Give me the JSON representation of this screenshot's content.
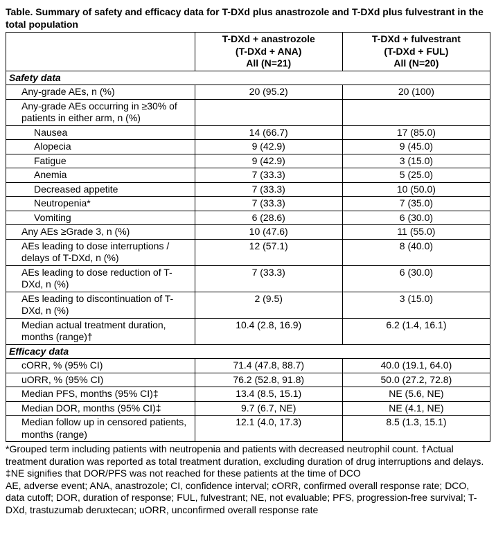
{
  "title": "Table. Summary of safety and efficacy data for T-DXd plus anastrozole and T-DXd plus fulvestrant in the total population",
  "columns": {
    "c1": {
      "line1": "T-DXd + anastrozole",
      "line2": "(T-DXd + ANA)",
      "line3": "All (N=21)"
    },
    "c2": {
      "line1": "T-DXd + fulvestrant",
      "line2": "(T-DXd + FUL)",
      "line3": "All (N=20)"
    }
  },
  "sections": {
    "safety": "Safety data",
    "efficacy": "Efficacy data"
  },
  "rows": {
    "r1": {
      "label": "Any-grade AEs, n (%)",
      "indent": 1,
      "v1": "20 (95.2)",
      "v2": "20 (100)"
    },
    "r2": {
      "label": "Any-grade AEs occurring in ≥30% of patients in either arm, n (%)",
      "indent": 1,
      "v1": "",
      "v2": ""
    },
    "r3": {
      "label": "Nausea",
      "indent": 2,
      "v1": "14 (66.7)",
      "v2": "17 (85.0)"
    },
    "r4": {
      "label": "Alopecia",
      "indent": 2,
      "v1": "9 (42.9)",
      "v2": "9 (45.0)"
    },
    "r5": {
      "label": "Fatigue",
      "indent": 2,
      "v1": "9 (42.9)",
      "v2": "3 (15.0)"
    },
    "r6": {
      "label": "Anemia",
      "indent": 2,
      "v1": "7 (33.3)",
      "v2": "5 (25.0)"
    },
    "r7": {
      "label": "Decreased appetite",
      "indent": 2,
      "v1": "7 (33.3)",
      "v2": "10 (50.0)"
    },
    "r8": {
      "label": "Neutropenia*",
      "indent": 2,
      "v1": "7 (33.3)",
      "v2": "7 (35.0)"
    },
    "r9": {
      "label": "Vomiting",
      "indent": 2,
      "v1": "6 (28.6)",
      "v2": "6 (30.0)"
    },
    "r10": {
      "label": "Any AEs ≥Grade 3, n (%)",
      "indent": 1,
      "v1": "10 (47.6)",
      "v2": "11 (55.0)"
    },
    "r11": {
      "label": "AEs leading to dose interruptions / delays of T-DXd, n (%)",
      "indent": 1,
      "v1": "12 (57.1)",
      "v2": "8 (40.0)"
    },
    "r12": {
      "label": "AEs leading to dose reduction of T-DXd, n (%)",
      "indent": 1,
      "v1": "7 (33.3)",
      "v2": "6 (30.0)"
    },
    "r13": {
      "label": "AEs leading to discontinuation of T-DXd, n (%)",
      "indent": 1,
      "v1": "2 (9.5)",
      "v2": "3 (15.0)"
    },
    "r14": {
      "label": "Median actual treatment duration, months (range)†",
      "indent": 1,
      "v1": "10.4 (2.8, 16.9)",
      "v2": "6.2 (1.4, 16.1)"
    },
    "r15": {
      "label": "cORR, % (95% CI)",
      "indent": 1,
      "v1": "71.4 (47.8, 88.7)",
      "v2": "40.0 (19.1, 64.0)"
    },
    "r16": {
      "label": "uORR, % (95% CI)",
      "indent": 1,
      "v1": "76.2 (52.8, 91.8)",
      "v2": "50.0 (27.2, 72.8)"
    },
    "r17": {
      "label": "Median PFS, months (95% CI)‡",
      "indent": 1,
      "v1": "13.4 (8.5, 15.1)",
      "v2": "NE (5.6, NE)"
    },
    "r18": {
      "label": "Median DOR, months (95% CI)‡",
      "indent": 1,
      "v1": "9.7 (6.7, NE)",
      "v2": "NE (4.1, NE)"
    },
    "r19": {
      "label": "Median follow up in censored patients, months (range)",
      "indent": 1,
      "v1": "12.1 (4.0, 17.3)",
      "v2": "8.5 (1.3, 15.1)"
    }
  },
  "footnotes": {
    "f1": "*Grouped term including patients with neutropenia and patients with decreased neutrophil count. †Actual treatment duration was reported as total treatment duration, excluding duration of drug interruptions and delays. ‡NE signifies that DOR/PFS was not reached for these patients at the time of DCO",
    "f2": "AE, adverse event; ANA, anastrozole; CI, confidence interval; cORR, confirmed overall response rate; DCO, data cutoff; DOR, duration of response; FUL, fulvestrant; NE, not evaluable; PFS, progression-free survival; T-DXd, trastuzumab deruxtecan; uORR, unconfirmed overall response rate"
  },
  "style": {
    "font_family": "Arial",
    "font_size_pt": 10.5,
    "border_color": "#000000",
    "background_color": "#ffffff",
    "text_color": "#000000"
  }
}
